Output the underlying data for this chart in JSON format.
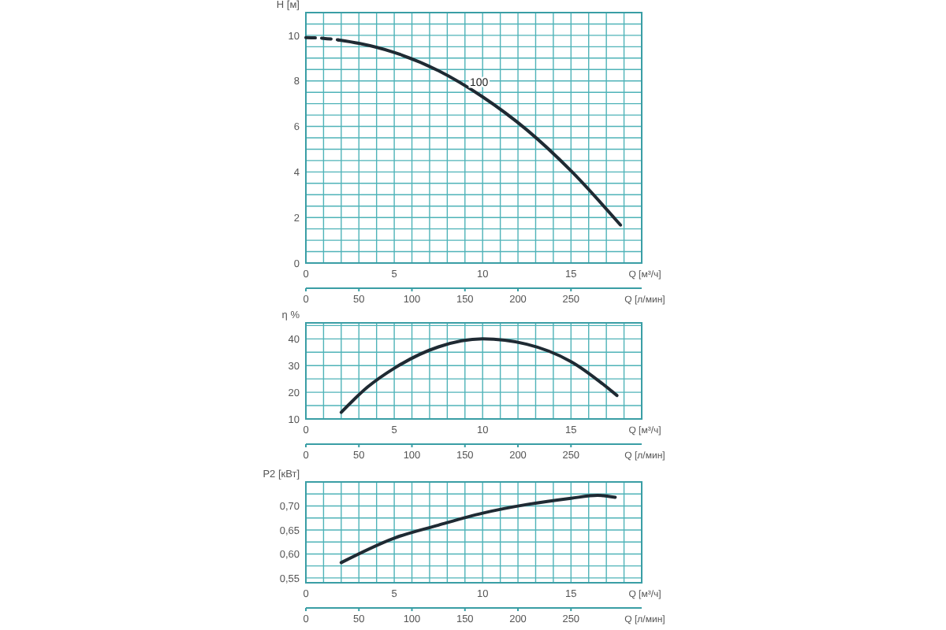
{
  "chart_data": [
    {
      "type": "line",
      "ylabel": "H [м]",
      "xlabel": "Q [м³/ч]",
      "x2label": "Q [л/мин]",
      "grid": true,
      "xlim": [
        0,
        19
      ],
      "ylim": [
        0,
        11
      ],
      "x2lim": [
        0,
        316.7
      ],
      "xticks": [
        0,
        {
          "value": 1,
          "label": null
        },
        {
          "value": 2,
          "label": null
        },
        {
          "value": 3,
          "label": null
        },
        {
          "value": 4,
          "label": null
        },
        5,
        {
          "value": 6,
          "label": null
        },
        {
          "value": 7,
          "label": null
        },
        {
          "value": 8,
          "label": null
        },
        {
          "value": 9,
          "label": null
        },
        10,
        {
          "value": 11,
          "label": null
        },
        {
          "value": 12,
          "label": null
        },
        {
          "value": 13,
          "label": null
        },
        {
          "value": 14,
          "label": null
        },
        15,
        {
          "value": 16,
          "label": null
        },
        {
          "value": 17,
          "label": null
        },
        {
          "value": 18,
          "label": null
        },
        {
          "value": 19,
          "label": null
        }
      ],
      "yticks": [
        0,
        {
          "value": 0.5,
          "label": null
        },
        {
          "value": 1,
          "label": null
        },
        {
          "value": 1.5,
          "label": null
        },
        2,
        {
          "value": 2.5,
          "label": null
        },
        {
          "value": 3,
          "label": null
        },
        {
          "value": 3.5,
          "label": null
        },
        4,
        {
          "value": 4.5,
          "label": null
        },
        {
          "value": 5,
          "label": null
        },
        {
          "value": 5.5,
          "label": null
        },
        6,
        {
          "value": 6.5,
          "label": null
        },
        {
          "value": 7,
          "label": null
        },
        {
          "value": 7.5,
          "label": null
        },
        8,
        {
          "value": 8.5,
          "label": null
        },
        {
          "value": 9,
          "label": null
        },
        {
          "value": 9.5,
          "label": null
        },
        10,
        {
          "value": 10.5,
          "label": null
        },
        {
          "value": 11,
          "label": null
        }
      ],
      "x2ticks": [
        0,
        50,
        100,
        150,
        200,
        250
      ],
      "series": [
        {
          "color": "#1f2a33",
          "line_style": "dashed",
          "x": [
            0,
            1,
            1.85
          ],
          "values": [
            9.9,
            9.87,
            9.8
          ]
        },
        {
          "color": "#1f2a33",
          "line_style": "solid",
          "x": [
            1.85,
            3,
            5,
            7.5,
            10,
            12.5,
            15,
            17.8
          ],
          "values": [
            9.8,
            9.65,
            9.25,
            8.45,
            7.3,
            5.85,
            4.05,
            1.67
          ]
        }
      ],
      "annotations": [
        {
          "text": "100",
          "x": 9.8,
          "y": 7.8
        }
      ]
    },
    {
      "type": "line",
      "ylabel": "η %",
      "xlabel": "Q [м³/ч]",
      "x2label": "Q [л/мин]",
      "grid": true,
      "xlim": [
        0,
        19
      ],
      "ylim": [
        10,
        46
      ],
      "x2lim": [
        0,
        316.7
      ],
      "xticks": [
        0,
        {
          "value": 1,
          "label": null
        },
        {
          "value": 2,
          "label": null
        },
        {
          "value": 3,
          "label": null
        },
        {
          "value": 4,
          "label": null
        },
        5,
        {
          "value": 6,
          "label": null
        },
        {
          "value": 7,
          "label": null
        },
        {
          "value": 8,
          "label": null
        },
        {
          "value": 9,
          "label": null
        },
        10,
        {
          "value": 11,
          "label": null
        },
        {
          "value": 12,
          "label": null
        },
        {
          "value": 13,
          "label": null
        },
        {
          "value": 14,
          "label": null
        },
        15,
        {
          "value": 16,
          "label": null
        },
        {
          "value": 17,
          "label": null
        },
        {
          "value": 18,
          "label": null
        },
        {
          "value": 19,
          "label": null
        }
      ],
      "yticks": [
        10,
        {
          "value": 15,
          "label": null
        },
        20,
        {
          "value": 25,
          "label": null
        },
        30,
        {
          "value": 35,
          "label": null
        },
        40,
        {
          "value": 45,
          "label": null
        }
      ],
      "x2ticks": [
        0,
        50,
        100,
        150,
        200,
        250
      ],
      "series": [
        {
          "color": "#1f2a33",
          "line_style": "solid",
          "x": [
            2,
            3.5,
            5,
            7.5,
            10,
            12.5,
            15,
            17.6
          ],
          "values": [
            12.5,
            22,
            29,
            37,
            40,
            38,
            31.5,
            18.8
          ]
        }
      ]
    },
    {
      "type": "line",
      "ylabel": "P2 [кВт]",
      "xlabel": "Q [м³/ч]",
      "x2label": "Q [л/мин]",
      "grid": true,
      "xlim": [
        0,
        19
      ],
      "ylim": [
        0.54,
        0.75
      ],
      "x2lim": [
        0,
        316.7
      ],
      "xticks": [
        0,
        {
          "value": 1,
          "label": null
        },
        {
          "value": 2,
          "label": null
        },
        {
          "value": 3,
          "label": null
        },
        {
          "value": 4,
          "label": null
        },
        5,
        {
          "value": 6,
          "label": null
        },
        {
          "value": 7,
          "label": null
        },
        {
          "value": 8,
          "label": null
        },
        {
          "value": 9,
          "label": null
        },
        10,
        {
          "value": 11,
          "label": null
        },
        {
          "value": 12,
          "label": null
        },
        {
          "value": 13,
          "label": null
        },
        {
          "value": 14,
          "label": null
        },
        15,
        {
          "value": 16,
          "label": null
        },
        {
          "value": 17,
          "label": null
        },
        {
          "value": 18,
          "label": null
        },
        {
          "value": 19,
          "label": null
        }
      ],
      "yticks": [
        {
          "value": 0.55,
          "label": "0,55"
        },
        {
          "value": 0.575,
          "label": null
        },
        {
          "value": 0.6,
          "label": "0,60"
        },
        {
          "value": 0.625,
          "label": null
        },
        {
          "value": 0.65,
          "label": "0,65"
        },
        {
          "value": 0.675,
          "label": null
        },
        {
          "value": 0.7,
          "label": "0,70"
        },
        {
          "value": 0.725,
          "label": null
        },
        {
          "value": 0.75,
          "label": null
        }
      ],
      "x2ticks": [
        0,
        50,
        100,
        150,
        200,
        250
      ],
      "series": [
        {
          "color": "#1f2a33",
          "line_style": "solid",
          "x": [
            2,
            5,
            7.5,
            10,
            12.5,
            15,
            16.5,
            17.5
          ],
          "values": [
            0.582,
            0.633,
            0.66,
            0.685,
            0.703,
            0.716,
            0.722,
            0.718
          ]
        }
      ]
    }
  ]
}
